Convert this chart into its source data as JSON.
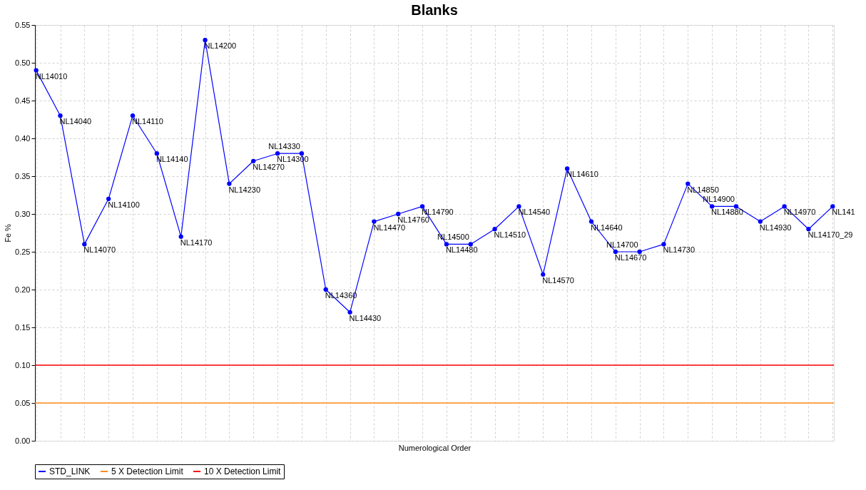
{
  "chart_data": {
    "type": "line",
    "title": "Blanks",
    "xlabel": "Numerological Order",
    "ylabel": "Fe %",
    "categories": [
      null,
      null,
      null,
      null,
      null,
      null,
      null,
      null,
      null,
      null,
      null,
      null,
      null,
      null,
      null,
      null,
      null,
      null,
      null,
      null,
      null,
      null,
      null,
      null,
      null,
      null,
      null,
      null,
      null,
      null,
      null,
      null,
      null,
      null
    ],
    "annotations": [
      "NL14010",
      "NL14040",
      "NL14070",
      "NL14100",
      "NL14110",
      "NL14140",
      "NL14170",
      "NL14200",
      "NL14230",
      "NL14270",
      "NL14300",
      "NL14330",
      "NL14360",
      "NL14430",
      "NL14470",
      "NL14760",
      "NL14790",
      "NL14480",
      "NL14500",
      "NL14510",
      "NL14540",
      "NL14570",
      "NL14610",
      "NL14640",
      "NL14670",
      "NL14700",
      "NL14730",
      "NL14850",
      "NL14880",
      "NL14900",
      "NL14930",
      "NL14970",
      "NL14170_29",
      "NL141"
    ],
    "series": [
      {
        "name": "STD_LINK",
        "color": "#0000ff",
        "values": [
          0.49,
          0.43,
          0.26,
          0.32,
          0.43,
          0.38,
          0.27,
          0.53,
          0.34,
          0.37,
          0.38,
          0.38,
          0.2,
          0.17,
          0.29,
          0.3,
          0.31,
          0.26,
          0.26,
          0.28,
          0.31,
          0.22,
          0.36,
          0.29,
          0.25,
          0.25,
          0.26,
          0.34,
          0.31,
          0.31,
          0.29,
          0.31,
          0.28,
          0.31
        ]
      }
    ],
    "ref_lines": [
      {
        "axis": "y",
        "value": 0.05,
        "label": "5 X Detection Limit",
        "color": "#ff8c1a"
      },
      {
        "axis": "y",
        "value": 0.1,
        "label": "10 X Detection Limit",
        "color": "#ff0000"
      }
    ],
    "ylim": [
      0,
      0.55
    ],
    "yticks": [
      {
        "value": 0,
        "label": "0.00"
      },
      {
        "value": 0.05,
        "label": "0.05"
      },
      {
        "value": 0.1,
        "label": "0.10"
      },
      {
        "value": 0.15,
        "label": "0.15"
      },
      {
        "value": 0.2,
        "label": "0.20"
      },
      {
        "value": 0.25,
        "label": "0.25"
      },
      {
        "value": 0.3,
        "label": "0.30"
      },
      {
        "value": 0.35,
        "label": "0.35"
      },
      {
        "value": 0.4,
        "label": "0.40"
      },
      {
        "value": 0.45,
        "label": "0.45"
      },
      {
        "value": 0.5,
        "label": "0.50"
      },
      {
        "value": 0.55,
        "label": "0.55"
      }
    ],
    "tick_labels": "y",
    "grid": true,
    "legend": "bottom",
    "marker": "circle",
    "line_style": "solid"
  }
}
